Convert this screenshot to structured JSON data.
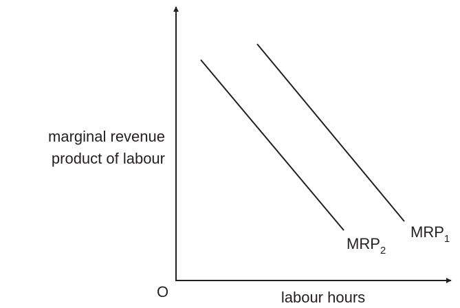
{
  "axes": {
    "y_label": [
      "marginal revenue",
      "product of labour"
    ],
    "x_label": "labour hours",
    "origin": "O"
  },
  "curves": [
    {
      "base": "MRP",
      "sub": "1"
    },
    {
      "base": "MRP",
      "sub": "2"
    }
  ]
}
